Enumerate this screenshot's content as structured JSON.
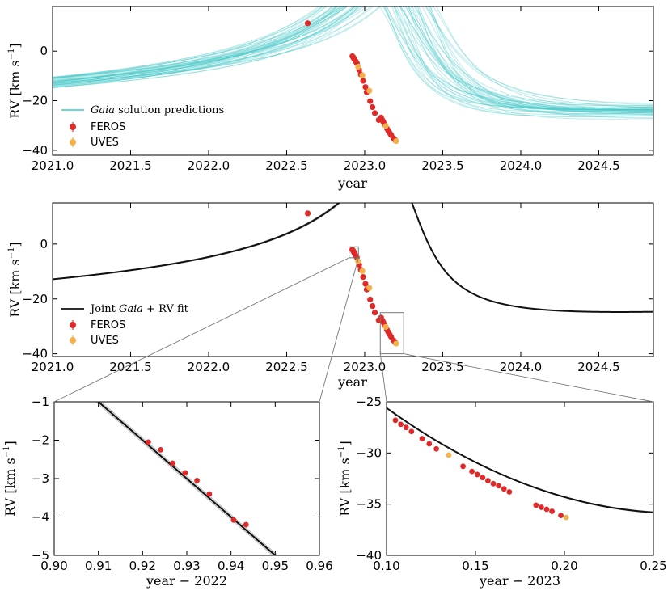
{
  "colors": {
    "gaia": "#40c6c6",
    "feros": "#e02a2a",
    "uves": "#f5b04a",
    "fit": "#111111",
    "zoom_box": "#777777"
  },
  "chart_data": [
    {
      "id": "top",
      "type": "line",
      "title": "",
      "xlabel": "year",
      "ylabel": "RV [km s^-1]",
      "ylabel_main": "RV [km s",
      "ylabel_exp": "−1",
      "ylabel_close": "]",
      "xlim": [
        2021.0,
        2024.85
      ],
      "ylim": [
        -42,
        18
      ],
      "xticks": [
        "2021.0",
        "2021.5",
        "2022.0",
        "2022.5",
        "2023.0",
        "2023.5",
        "2024.0",
        "2024.5"
      ],
      "xtick_values": [
        2021.0,
        2021.5,
        2022.0,
        2022.5,
        2023.0,
        2023.5,
        2024.0,
        2024.5
      ],
      "yticks": [
        "0",
        "−20",
        "−40"
      ],
      "ytick_values": [
        0,
        -20,
        -40
      ],
      "legend": {
        "position": "lower-left",
        "entries": [
          {
            "label_italic": "Gaia",
            "label_rest": " solution predictions",
            "kind": "line",
            "series": "gaia"
          },
          {
            "label": "FEROS",
            "kind": "marker",
            "series": "feros"
          },
          {
            "label": "UVES",
            "kind": "marker",
            "series": "uves"
          }
        ]
      },
      "series": [
        {
          "name": "Gaia solution predictions",
          "style": "curve-bundle",
          "count": 40,
          "t_periastron_range": [
            2023.05,
            2023.42
          ],
          "K_range": [
            24,
            28
          ]
        }
      ]
    },
    {
      "id": "middle",
      "type": "line",
      "title": "",
      "xlabel": "year",
      "ylabel": "RV [km s^-1]",
      "ylabel_main": "RV [km s",
      "ylabel_exp": "−1",
      "ylabel_close": "]",
      "xlim": [
        2021.0,
        2024.85
      ],
      "ylim": [
        -41,
        15
      ],
      "xticks": [
        "2021.0",
        "2021.5",
        "2022.0",
        "2022.5",
        "2023.0",
        "2023.5",
        "2024.0",
        "2024.5"
      ],
      "xtick_values": [
        2021.0,
        2021.5,
        2022.0,
        2022.5,
        2023.0,
        2023.5,
        2024.0,
        2024.5
      ],
      "yticks": [
        "0",
        "−20",
        "−40"
      ],
      "ytick_values": [
        0,
        -20,
        -40
      ],
      "zoom_boxes": [
        {
          "x": [
            2022.9,
            2022.96
          ],
          "y": [
            -5,
            -1
          ],
          "target": "lower-left"
        },
        {
          "x": [
            2023.1,
            2023.25
          ],
          "y": [
            -40,
            -25
          ],
          "target": "lower-right"
        }
      ],
      "legend": {
        "position": "lower-left",
        "entries": [
          {
            "label_pre": "Joint ",
            "label_italic": "Gaia",
            "label_rest": " + RV fit",
            "kind": "line",
            "series": "fit"
          },
          {
            "label": "FEROS",
            "kind": "marker",
            "series": "feros"
          },
          {
            "label": "UVES",
            "kind": "marker",
            "series": "uves"
          }
        ]
      },
      "series": [
        {
          "name": "Joint Gaia + RV fit",
          "style": "curve"
        }
      ]
    },
    {
      "id": "lower-left",
      "type": "line",
      "title": "",
      "xlabel": "year − 2022",
      "ylabel": "RV [km s^-1]",
      "ylabel_main": "RV [km s",
      "ylabel_exp": "−1",
      "ylabel_close": "]",
      "xlim": [
        0.9,
        0.96
      ],
      "ylim": [
        -5,
        -1
      ],
      "xticks": [
        "0.90",
        "0.91",
        "0.92",
        "0.93",
        "0.94",
        "0.95",
        "0.96"
      ],
      "xtick_values": [
        0.9,
        0.91,
        0.92,
        0.93,
        0.94,
        0.95,
        0.96
      ],
      "yticks": [
        "−1",
        "−2",
        "−3",
        "−4",
        "−5"
      ],
      "ytick_values": [
        -1,
        -2,
        -3,
        -4,
        -5
      ],
      "series": [
        {
          "name": "Joint fit",
          "style": "curve",
          "x": [
            0.91,
            0.95
          ],
          "y": [
            -1.0,
            -5.0
          ]
        },
        {
          "name": "FEROS",
          "style": "markers",
          "x": [
            0.9213,
            0.9241,
            0.9268,
            0.9296,
            0.9323,
            0.9351,
            0.9406,
            0.9434
          ],
          "y": [
            -2.05,
            -2.25,
            -2.6,
            -2.85,
            -3.05,
            -3.4,
            -4.08,
            -4.2
          ]
        }
      ]
    },
    {
      "id": "lower-right",
      "type": "line",
      "title": "",
      "xlabel": "year − 2023",
      "ylabel": "RV [km s^-1]",
      "ylabel_main": "RV [km s",
      "ylabel_exp": "−1",
      "ylabel_close": "]",
      "xlim": [
        0.1,
        0.25
      ],
      "ylim": [
        -40,
        -25
      ],
      "xticks": [
        "0.10",
        "0.15",
        "0.20",
        "0.25"
      ],
      "xtick_values": [
        0.1,
        0.15,
        0.2,
        0.25
      ],
      "yticks": [
        "−25",
        "−30",
        "−35",
        "−40"
      ],
      "ytick_values": [
        -25,
        -30,
        -35,
        -40
      ],
      "series": [
        {
          "name": "Joint fit",
          "style": "curve"
        },
        {
          "name": "FEROS",
          "style": "markers",
          "x": [
            0.105,
            0.108,
            0.111,
            0.114,
            0.12,
            0.124,
            0.128,
            0.143,
            0.148,
            0.151,
            0.154,
            0.157,
            0.16,
            0.163,
            0.166,
            0.169,
            0.184,
            0.187,
            0.19,
            0.193,
            0.198
          ],
          "y": [
            -26.8,
            -27.2,
            -27.5,
            -27.9,
            -28.6,
            -29.1,
            -29.6,
            -31.3,
            -31.8,
            -32.1,
            -32.4,
            -32.7,
            -33.0,
            -33.2,
            -33.5,
            -33.8,
            -35.1,
            -35.3,
            -35.5,
            -35.7,
            -36.1
          ]
        },
        {
          "name": "UVES",
          "style": "markers",
          "x": [
            0.135,
            0.201
          ],
          "y": [
            -30.2,
            -36.3
          ]
        }
      ]
    }
  ],
  "observations": {
    "feros": {
      "x": [
        2022.635,
        2022.921,
        2022.924,
        2022.927,
        2022.93,
        2022.932,
        2022.935,
        2022.941,
        2022.943,
        2022.95,
        2022.965,
        2022.975,
        2022.99,
        2023.005,
        2023.013,
        2023.035,
        2023.05,
        2023.065,
        2023.09,
        2023.105,
        2023.114,
        2023.12,
        2023.128,
        2023.143,
        2023.151,
        2023.16,
        2023.169,
        2023.184,
        2023.193,
        2023.198
      ],
      "y": [
        11.2,
        -2.05,
        -2.25,
        -2.6,
        -2.85,
        -3.05,
        -3.4,
        -4.08,
        -4.2,
        -4.9,
        -7.6,
        -9.4,
        -12.0,
        -14.5,
        -16.6,
        -20.2,
        -22.6,
        -25.0,
        -27.8,
        -26.8,
        -27.9,
        -28.6,
        -29.6,
        -31.3,
        -32.1,
        -33.0,
        -33.8,
        -35.1,
        -35.7,
        -36.1
      ]
    },
    "uves": {
      "x": [
        2022.958,
        2022.985,
        2023.03,
        2023.135,
        2023.201
      ],
      "y": [
        -6.3,
        -9.8,
        -16.0,
        -30.2,
        -36.3
      ]
    }
  }
}
